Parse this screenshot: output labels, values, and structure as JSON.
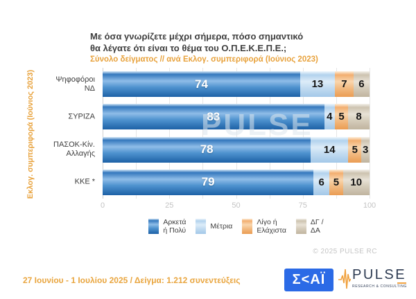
{
  "title": {
    "line1": "Με όσα γνωρίζετε μέχρι σήμερα, πόσο σημαντικό",
    "line2": "θα λέγατε ότι είναι το θέμα του  Ο.Π.Ε.Κ.Ε.Π.Ε.;"
  },
  "subtitle": "Σύνολο δείγματος // ανά Εκλογ. συμπεριφορά (Ιούνιος 2023)",
  "y_axis_title": "Εκλογ. συμπεριφορά (Ιούνιος 2023)",
  "watermark": "PULSE",
  "copyright": "© 2025 PULSE RC",
  "footer": {
    "survey_info": "27 Ιουνίου - 1 Ιουλίου 2025  /  Δείγμα:  1.212 συνεντεύξεις"
  },
  "logos": {
    "skai_text": "Σ<ΑΪ",
    "pulse_name": "PULSE",
    "pulse_subtext": "RESEARCH & CONSULTING"
  },
  "colors": {
    "accent_orange": "#e8a23c",
    "skai_blue": "#2b6ae6",
    "series": [
      "#2e74b5",
      "#bdd7ee",
      "#f4b183",
      "#d6cec0"
    ]
  },
  "chart_data": {
    "type": "bar",
    "orientation": "horizontal",
    "stacked": true,
    "title": "Με όσα γνωρίζετε μέχρι σήμερα, πόσο σημαντικό θα λέγατε ότι είναι το θέμα του Ο.Π.Ε.Κ.Ε.Π.Ε.;",
    "subtitle": "Σύνολο δείγματος // ανά Εκλογ. συμπεριφορά (Ιούνιος 2023)",
    "ylabel": "Εκλογ. συμπεριφορά (Ιούνιος 2023)",
    "xlabel": "",
    "xlim": [
      0,
      100
    ],
    "x_ticks": [
      0,
      25,
      50,
      75,
      100
    ],
    "gridline_interval": 12.5,
    "grid": true,
    "legend_position": "bottom",
    "categories": [
      "Ψηφοφόροι ΝΔ",
      "ΣΥΡΙΖΑ",
      "ΠΑΣΟΚ-Κίν. Αλλαγής",
      "ΚΚΕ *"
    ],
    "categories_display": [
      [
        "Ψηφοφόροι",
        "ΝΔ"
      ],
      [
        "ΣΥΡΙΖΑ"
      ],
      [
        "ΠΑΣΟΚ-Κίν.",
        "Αλλαγής"
      ],
      [
        "ΚΚΕ *"
      ]
    ],
    "series": [
      {
        "name": "Αρκετά ή Πολύ",
        "color": "#2e74b5",
        "values": [
          74,
          83,
          78,
          79
        ]
      },
      {
        "name": "Μέτρια",
        "color": "#bdd7ee",
        "values": [
          13,
          4,
          14,
          6
        ]
      },
      {
        "name": "Λίγο ή Ελάχιστα",
        "color": "#f4b183",
        "values": [
          7,
          5,
          5,
          5
        ]
      },
      {
        "name": "ΔΓ / ΔΑ",
        "color": "#d6cec0",
        "values": [
          6,
          8,
          3,
          10
        ]
      }
    ],
    "legend_display": [
      [
        "Αρκετά",
        "ή Πολύ"
      ],
      [
        "Μέτρια"
      ],
      [
        "Λίγο ή",
        "Ελάχιστα"
      ],
      [
        "ΔΓ /",
        "ΔΑ"
      ]
    ]
  }
}
